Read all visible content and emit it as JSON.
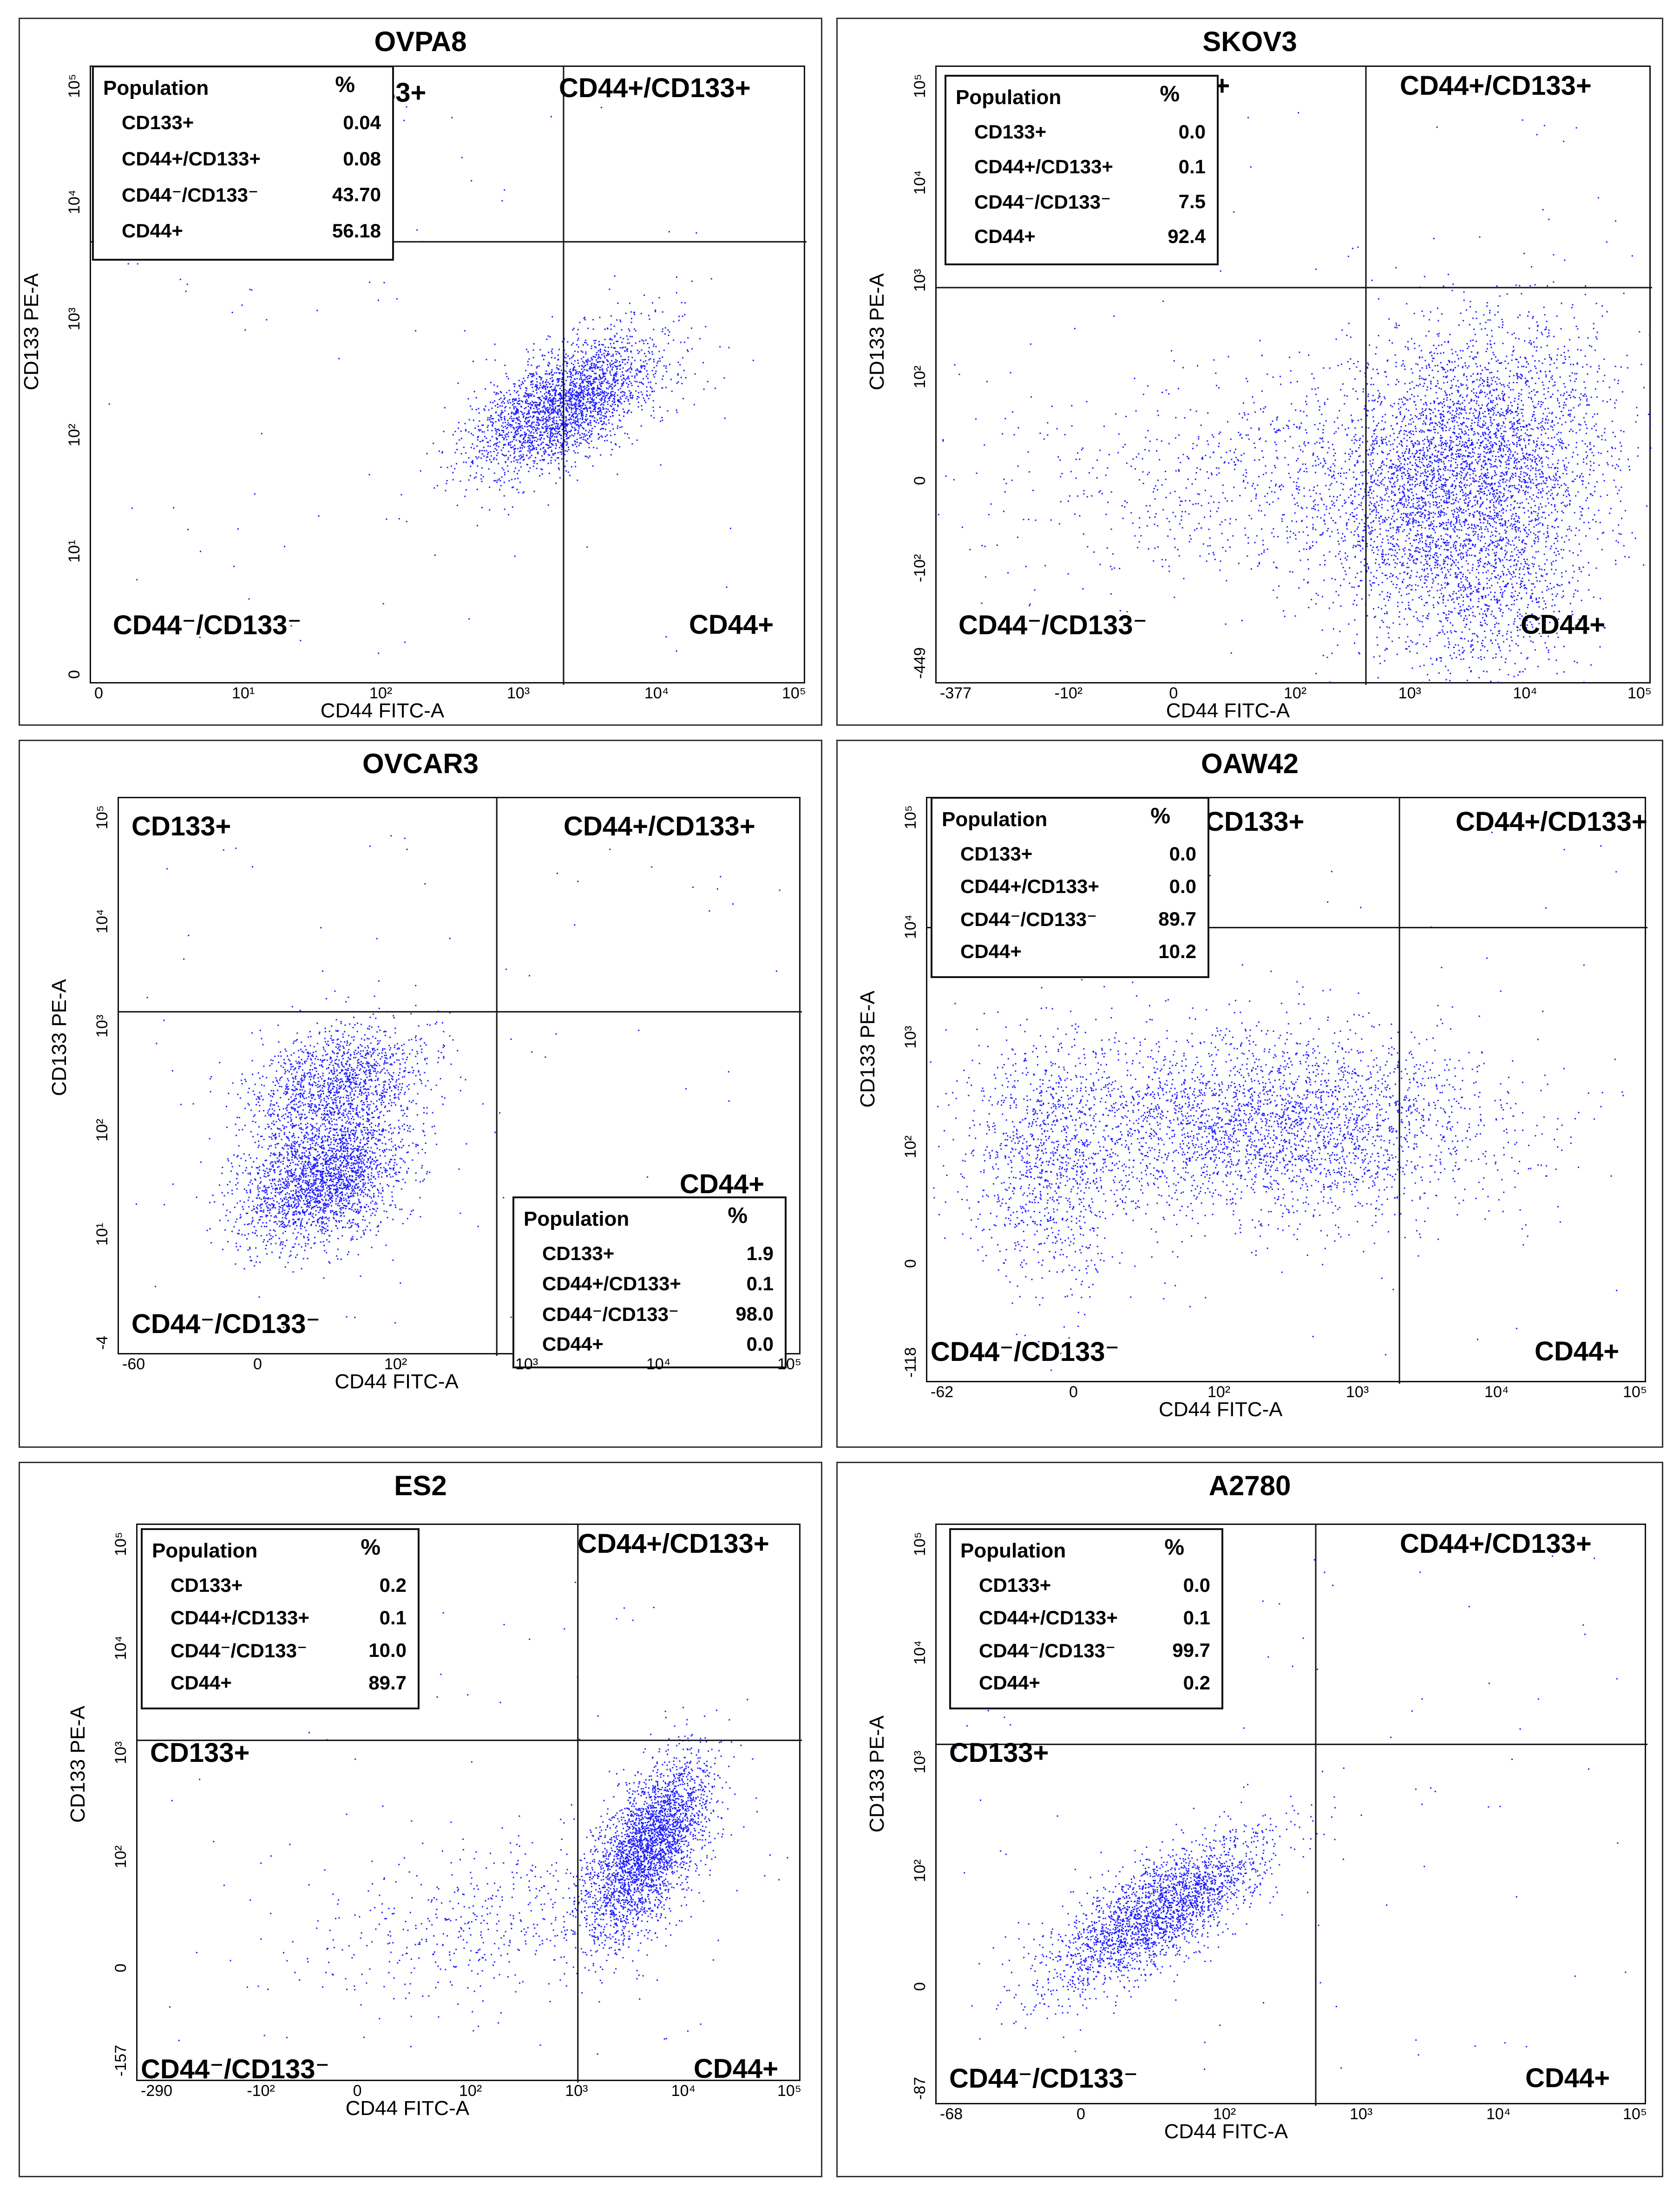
{
  "figure": {
    "background": "#ffffff",
    "dot_color": "#1f1fff",
    "line_color": "#111111"
  },
  "chart_data": [
    {
      "type": "scatter",
      "title": "OVPA8",
      "xlabel": "CD44 FITC-A",
      "ylabel": "CD133 PE-A",
      "x_ticks": [
        "0",
        "10¹",
        "10²",
        "10³",
        "10⁴",
        "10⁵"
      ],
      "y_ticks": [
        "0",
        "10¹",
        "10²",
        "10³",
        "10⁴",
        "10⁵"
      ],
      "quadrants": {
        "top_left": "CD133+",
        "top_right": "CD44+/CD133+",
        "bottom_left": "CD44⁻/CD133⁻",
        "bottom_right": "CD44+"
      },
      "table": {
        "header_name": "Population",
        "header_value": "%",
        "rows": [
          {
            "name": "CD133+",
            "value": "0.04"
          },
          {
            "name": "CD44+/CD133+",
            "value": "0.08"
          },
          {
            "name": "CD44⁻/CD133⁻",
            "value": "43.70"
          },
          {
            "name": "CD44+",
            "value": "56.18"
          }
        ]
      },
      "gate": {
        "x": 3.5,
        "y": 3.8
      },
      "clusters": [
        {
          "cx": 3.5,
          "cy": 2.4,
          "sx": 0.35,
          "sy": 0.3,
          "r": 0.6,
          "n": 2600
        }
      ],
      "axis": {
        "xmin": 0,
        "xmax": 5.3,
        "ymin": 0,
        "ymax": 5.3
      }
    },
    {
      "type": "scatter",
      "title": "SKOV3",
      "xlabel": "CD44 FITC-A",
      "ylabel": "CD133 PE-A",
      "x_ticks": [
        "-377",
        "-10²",
        "0",
        "10²",
        "10³",
        "10⁴",
        "10⁵"
      ],
      "y_ticks": [
        "-449",
        "-10²",
        "0",
        "10²",
        "10³",
        "10⁴",
        "10⁵"
      ],
      "quadrants": {
        "top_left": "CD133+",
        "top_right": "CD44+/CD133+",
        "bottom_left": "CD44⁻/CD133⁻",
        "bottom_right": "CD44+"
      },
      "table": {
        "header_name": "Population",
        "header_value": "%",
        "rows": [
          {
            "name": "CD133+",
            "value": "0.0"
          },
          {
            "name": "CD44+/CD133+",
            "value": "0.1"
          },
          {
            "name": "CD44⁻/CD133⁻",
            "value": "7.5"
          },
          {
            "name": "CD44+",
            "value": "92.4"
          }
        ]
      },
      "gate": {
        "x": 3.7,
        "y": 3.8
      },
      "clusters": [
        {
          "cx": 4.25,
          "cy": 2.55,
          "sx": 0.4,
          "sy": 0.5,
          "r": 0.2,
          "n": 4200
        },
        {
          "cx": 3.2,
          "cy": 2.5,
          "sx": 0.8,
          "sy": 0.35,
          "r": 0.0,
          "n": 900
        },
        {
          "cx": 4.35,
          "cy": 1.7,
          "sx": 0.25,
          "sy": 0.35,
          "r": 0.0,
          "n": 700
        }
      ],
      "axis": {
        "xmin": 1.3,
        "xmax": 5.3,
        "ymin": 1.1,
        "ymax": 5.3
      }
    },
    {
      "type": "scatter",
      "title": "OVCAR3",
      "xlabel": "CD44 FITC-A",
      "ylabel": "CD133 PE-A",
      "x_ticks": [
        "-60",
        "0",
        "10²",
        "10³",
        "10⁴",
        "10⁵"
      ],
      "y_ticks": [
        "-4",
        "10¹",
        "10²",
        "10³",
        "10⁴",
        "10⁵"
      ],
      "quadrants": {
        "top_left": "CD133+",
        "top_right": "CD44+/CD133+",
        "bottom_left": "CD44⁻/CD133⁻",
        "bottom_right": "CD44+"
      },
      "table": {
        "header_name": "Population",
        "header_value": "%",
        "rows": [
          {
            "name": "CD133+",
            "value": "1.9"
          },
          {
            "name": "CD44+/CD133+",
            "value": "0.1"
          },
          {
            "name": "CD44⁻/CD133⁻",
            "value": "98.0"
          },
          {
            "name": "CD44+",
            "value": "0.0"
          }
        ]
      },
      "gate": {
        "x": 3.2,
        "y": 3.5
      },
      "clusters": [
        {
          "cx": 2.0,
          "cy": 2.1,
          "sx": 0.28,
          "sy": 0.28,
          "r": 0.3,
          "n": 2400
        },
        {
          "cx": 2.1,
          "cy": 2.9,
          "sx": 0.3,
          "sy": 0.25,
          "r": 0.3,
          "n": 1400
        }
      ],
      "axis": {
        "xmin": 0.6,
        "xmax": 5.3,
        "ymin": 0.6,
        "ymax": 5.3
      }
    },
    {
      "type": "scatter",
      "title": "OAW42",
      "xlabel": "CD44 FITC-A",
      "ylabel": "CD133 PE-A",
      "x_ticks": [
        "-62",
        "0",
        "10²",
        "10³",
        "10⁴",
        "10⁵"
      ],
      "y_ticks": [
        "-118",
        "0",
        "10²",
        "10³",
        "10⁴",
        "10⁵"
      ],
      "quadrants": {
        "top_left": "CD133+",
        "top_right": "CD44+/CD133+",
        "bottom_left": "CD44⁻/CD133⁻",
        "bottom_right": "CD44+"
      },
      "table": {
        "header_name": "Population",
        "header_value": "%",
        "rows": [
          {
            "name": "CD133+",
            "value": "0.0"
          },
          {
            "name": "CD44+/CD133+",
            "value": "0.0"
          },
          {
            "name": "CD44⁻/CD133⁻",
            "value": "89.7"
          },
          {
            "name": "CD44+",
            "value": "10.2"
          }
        ]
      },
      "gate": {
        "x": 3.75,
        "y": 4.35
      },
      "clusters": [
        {
          "cx": 2.9,
          "cy": 2.9,
          "sx": 0.75,
          "sy": 0.35,
          "r": 0.0,
          "n": 3200
        },
        {
          "cx": 1.55,
          "cy": 2.6,
          "sx": 0.25,
          "sy": 0.45,
          "r": 0.0,
          "n": 900
        }
      ],
      "axis": {
        "xmin": 0.8,
        "xmax": 5.3,
        "ymin": 1.0,
        "ymax": 5.3
      }
    },
    {
      "type": "scatter",
      "title": "ES2",
      "xlabel": "CD44 FITC-A",
      "ylabel": "CD133 PE-A",
      "x_ticks": [
        "-290",
        "-10²",
        "0",
        "10²",
        "10³",
        "10⁴",
        "10⁵"
      ],
      "y_ticks": [
        "-157",
        "0",
        "10²",
        "10³",
        "10⁴",
        "10⁵"
      ],
      "quadrants": {
        "top_left": "CD133+",
        "top_right": "CD44+/CD133+",
        "bottom_left": "CD44⁻/CD133⁻",
        "bottom_right": "CD44+"
      },
      "table": {
        "header_name": "Population",
        "header_value": "%",
        "rows": [
          {
            "name": "CD133+",
            "value": "0.2"
          },
          {
            "name": "CD44+/CD133+",
            "value": "0.1"
          },
          {
            "name": "CD44⁻/CD133⁻",
            "value": "10.0"
          },
          {
            "name": "CD44+",
            "value": "89.7"
          }
        ]
      },
      "gate": {
        "x": 3.85,
        "y": 3.6
      },
      "clusters": [
        {
          "cx": 4.3,
          "cy": 2.75,
          "sx": 0.2,
          "sy": 0.35,
          "r": 0.6,
          "n": 2800
        },
        {
          "cx": 3.3,
          "cy": 2.2,
          "sx": 0.6,
          "sy": 0.3,
          "r": 0.3,
          "n": 500
        }
      ],
      "axis": {
        "xmin": 1.0,
        "xmax": 5.3,
        "ymin": 0.9,
        "ymax": 5.3
      }
    },
    {
      "type": "scatter",
      "title": "A2780",
      "xlabel": "CD44 FITC-A",
      "ylabel": "CD133 PE-A",
      "x_ticks": [
        "-68",
        "0",
        "10²",
        "10³",
        "10⁴",
        "10⁵"
      ],
      "y_ticks": [
        "-87",
        "0",
        "10²",
        "10³",
        "10⁴",
        "10⁵"
      ],
      "quadrants": {
        "top_left": "CD133+",
        "top_right": "CD44+/CD133+",
        "bottom_left": "CD44⁻/CD133⁻",
        "bottom_right": "CD44+"
      },
      "table": {
        "header_name": "Population",
        "header_value": "%",
        "rows": [
          {
            "name": "CD133+",
            "value": "0.0"
          },
          {
            "name": "CD44+/CD133+",
            "value": "0.1"
          },
          {
            "name": "CD44⁻/CD133⁻",
            "value": "99.7"
          },
          {
            "name": "CD44+",
            "value": "0.2"
          }
        ]
      },
      "gate": {
        "x": 3.2,
        "y": 3.6
      },
      "clusters": [
        {
          "cx": 2.2,
          "cy": 2.3,
          "sx": 0.35,
          "sy": 0.3,
          "r": 0.75,
          "n": 2400
        }
      ],
      "axis": {
        "xmin": 0.8,
        "xmax": 5.3,
        "ymin": 0.8,
        "ymax": 5.3
      }
    }
  ]
}
